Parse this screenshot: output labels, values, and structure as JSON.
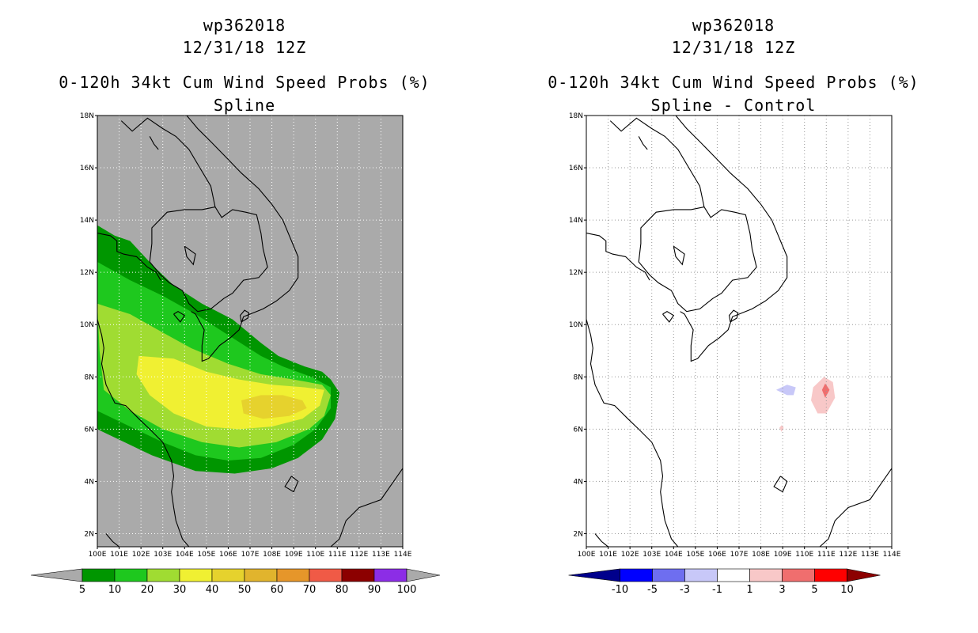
{
  "chart_data": [
    {
      "type": "heatmap",
      "title_lines": [
        "wp362018",
        "12/31/18 12Z",
        "0-120h 34kt Cum Wind Speed Probs (%)",
        "Spline"
      ],
      "x_ticks": [
        "100E",
        "101E",
        "102E",
        "103E",
        "104E",
        "105E",
        "106E",
        "107E",
        "108E",
        "109E",
        "110E",
        "111E",
        "112E",
        "113E",
        "114E"
      ],
      "y_ticks": [
        "2N",
        "4N",
        "6N",
        "8N",
        "10N",
        "12N",
        "14N",
        "16N",
        "18N"
      ],
      "xlim": [
        100,
        114
      ],
      "ylim": [
        1.5,
        18
      ],
      "background": "#aaaaaa",
      "grid": true,
      "colorbar": {
        "labels": [
          "5",
          "10",
          "20",
          "30",
          "40",
          "50",
          "60",
          "70",
          "80",
          "90",
          "100"
        ],
        "colors": [
          "#009600",
          "#1ec81e",
          "#a0dc32",
          "#f0f032",
          "#e6d22d",
          "#e1b42d",
          "#e6962a",
          "#f05a46",
          "#8c0000",
          "#8c2de6"
        ],
        "under_color": "#aaaaaa",
        "over_color": "#aaaaaa"
      },
      "contours": [
        {
          "level": 5,
          "color": "#009600",
          "points": [
            [
              100,
              13.8
            ],
            [
              100.8,
              13.4
            ],
            [
              101.5,
              13.2
            ],
            [
              102.5,
              12.3
            ],
            [
              103.5,
              11.5
            ],
            [
              104.8,
              10.8
            ],
            [
              106.2,
              10.2
            ],
            [
              107.5,
              9.3
            ],
            [
              108.3,
              8.8
            ],
            [
              109.5,
              8.4
            ],
            [
              110.3,
              8.2
            ],
            [
              110.7,
              7.9
            ],
            [
              111.1,
              7.4
            ],
            [
              110.9,
              6.4
            ],
            [
              110.3,
              5.6
            ],
            [
              109.2,
              4.9
            ],
            [
              108,
              4.5
            ],
            [
              106.3,
              4.3
            ],
            [
              104.5,
              4.4
            ],
            [
              102.5,
              5
            ],
            [
              101,
              5.6
            ],
            [
              100,
              6
            ]
          ]
        },
        {
          "level": 10,
          "color": "#1ec81e",
          "points": [
            [
              100,
              12.4
            ],
            [
              101.5,
              11.7
            ],
            [
              103,
              11.1
            ],
            [
              104.5,
              10.4
            ],
            [
              106,
              9.6
            ],
            [
              107.5,
              8.8
            ],
            [
              108.5,
              8.4
            ],
            [
              109.8,
              8
            ],
            [
              110.7,
              7.6
            ],
            [
              110.7,
              6.8
            ],
            [
              110,
              6
            ],
            [
              109,
              5.4
            ],
            [
              107.5,
              4.9
            ],
            [
              106,
              4.8
            ],
            [
              104.5,
              5
            ],
            [
              103,
              5.5
            ],
            [
              101.5,
              6.1
            ],
            [
              100,
              6.7
            ]
          ]
        },
        {
          "level": 20,
          "color": "#a0dc32",
          "points": [
            [
              100,
              10.8
            ],
            [
              101.5,
              10.4
            ],
            [
              103,
              9.7
            ],
            [
              104.3,
              9.1
            ],
            [
              106,
              8.5
            ],
            [
              107.5,
              8.1
            ],
            [
              109,
              7.9
            ],
            [
              110.3,
              7.7
            ],
            [
              110.7,
              7.3
            ],
            [
              110.4,
              6.5
            ],
            [
              109.7,
              6
            ],
            [
              108.2,
              5.5
            ],
            [
              106.5,
              5.3
            ],
            [
              104.8,
              5.5
            ],
            [
              103,
              6
            ],
            [
              101.5,
              6.7
            ],
            [
              100.3,
              7.5
            ],
            [
              100.1,
              9
            ]
          ]
        },
        {
          "level": 30,
          "color": "#f0f032",
          "points": [
            [
              101.9,
              8.8
            ],
            [
              103.5,
              8.7
            ],
            [
              105,
              8.2
            ],
            [
              106.5,
              7.9
            ],
            [
              108,
              7.7
            ],
            [
              109.5,
              7.6
            ],
            [
              110.4,
              7.5
            ],
            [
              110.2,
              6.9
            ],
            [
              109.4,
              6.4
            ],
            [
              108,
              6.1
            ],
            [
              106.5,
              6
            ],
            [
              105,
              6.1
            ],
            [
              103.5,
              6.6
            ],
            [
              102.4,
              7.3
            ],
            [
              101.8,
              8.1
            ]
          ]
        },
        {
          "level": 40,
          "color": "#e6d22d",
          "points": [
            [
              106.6,
              7.1
            ],
            [
              107.5,
              7.3
            ],
            [
              108.5,
              7.3
            ],
            [
              109.4,
              7.1
            ],
            [
              109.6,
              6.8
            ],
            [
              108.8,
              6.5
            ],
            [
              107.6,
              6.4
            ],
            [
              106.7,
              6.6
            ]
          ]
        }
      ]
    },
    {
      "type": "heatmap",
      "title_lines": [
        "wp362018",
        "12/31/18 12Z",
        "0-120h 34kt Cum Wind Speed Probs (%)",
        "Spline - Control"
      ],
      "x_ticks": [
        "100E",
        "101E",
        "102E",
        "103E",
        "104E",
        "105E",
        "106E",
        "107E",
        "108E",
        "109E",
        "110E",
        "111E",
        "112E",
        "113E",
        "114E"
      ],
      "y_ticks": [
        "2N",
        "4N",
        "6N",
        "8N",
        "10N",
        "12N",
        "14N",
        "16N",
        "18N"
      ],
      "xlim": [
        100,
        114
      ],
      "ylim": [
        1.5,
        18
      ],
      "background": "#ffffff",
      "grid": true,
      "colorbar": {
        "labels": [
          "-10",
          "-5",
          "-3",
          "-1",
          "1",
          "3",
          "5",
          "10"
        ],
        "colors": [
          "#0000ff",
          "#6e6ef0",
          "#c8c8f8",
          "#ffffff",
          "#f8c8c8",
          "#f06e6e",
          "#ff0000"
        ],
        "under_color": "#00008c",
        "over_color": "#8c0000"
      },
      "contours": [
        {
          "level": -1,
          "color": "#c8c8f8",
          "points": [
            [
              108.7,
              7.5
            ],
            [
              109.2,
              7.7
            ],
            [
              109.6,
              7.6
            ],
            [
              109.5,
              7.3
            ],
            [
              109.2,
              7.3
            ]
          ]
        },
        {
          "level": 1,
          "color": "#f8c8c8",
          "points": [
            [
              110.4,
              7.6
            ],
            [
              110.9,
              8
            ],
            [
              111.3,
              7.8
            ],
            [
              111.4,
              7.2
            ],
            [
              111,
              6.6
            ],
            [
              110.6,
              6.6
            ],
            [
              110.3,
              7.1
            ]
          ]
        },
        {
          "level": 3,
          "color": "#f06e6e",
          "points": [
            [
              110.8,
              7.5
            ],
            [
              110.95,
              7.75
            ],
            [
              111.15,
              7.5
            ],
            [
              110.95,
              7.2
            ]
          ]
        },
        {
          "level": 1,
          "color": "#f8c8c8",
          "points": [
            [
              108.85,
              6.05
            ],
            [
              108.95,
              6.15
            ],
            [
              109.05,
              6.05
            ],
            [
              108.95,
              5.9
            ]
          ]
        }
      ]
    }
  ],
  "coastlines": [
    [
      [
        101.1,
        17.8
      ],
      [
        101.6,
        17.4
      ],
      [
        102.3,
        17.9
      ],
      [
        103,
        17.5
      ],
      [
        103.6,
        17.2
      ],
      [
        104.2,
        16.7
      ],
      [
        104.7,
        16
      ],
      [
        105.2,
        15.3
      ],
      [
        105.4,
        14.5
      ],
      [
        105.7,
        14.1
      ],
      [
        106.2,
        14.4
      ],
      [
        106.8,
        14.3
      ],
      [
        107.3,
        14.2
      ],
      [
        107.5,
        13.5
      ],
      [
        107.6,
        12.9
      ],
      [
        107.8,
        12.2
      ],
      [
        107.4,
        11.8
      ],
      [
        106.7,
        11.7
      ],
      [
        106.2,
        11.2
      ],
      [
        105.8,
        11
      ],
      [
        105.2,
        10.6
      ],
      [
        104.6,
        10.5
      ],
      [
        104.2,
        10.8
      ],
      [
        103.9,
        11.3
      ],
      [
        103.3,
        11.6
      ],
      [
        102.9,
        11.9
      ],
      [
        102.4,
        12.4
      ],
      [
        102.5,
        13.1
      ],
      [
        102.5,
        13.7
      ],
      [
        103.2,
        14.3
      ],
      [
        104,
        14.4
      ],
      [
        104.8,
        14.4
      ],
      [
        105.4,
        14.5
      ]
    ],
    [
      [
        104.1,
        18
      ],
      [
        104.6,
        17.5
      ],
      [
        105.2,
        17
      ],
      [
        105.9,
        16.4
      ],
      [
        106.6,
        15.8
      ],
      [
        107.4,
        15.2
      ],
      [
        108,
        14.6
      ],
      [
        108.5,
        14
      ],
      [
        108.9,
        13.2
      ],
      [
        109.2,
        12.6
      ],
      [
        109.2,
        11.8
      ],
      [
        108.8,
        11.3
      ],
      [
        108.2,
        10.9
      ],
      [
        107.6,
        10.6
      ],
      [
        107,
        10.4
      ],
      [
        106.7,
        10.3
      ],
      [
        106.5,
        9.8
      ],
      [
        106.1,
        9.5
      ],
      [
        105.6,
        9.2
      ],
      [
        105.1,
        8.7
      ],
      [
        104.8,
        8.6
      ],
      [
        104.8,
        9.2
      ],
      [
        104.9,
        9.8
      ],
      [
        104.5,
        10.4
      ],
      [
        104.3,
        10.5
      ]
    ],
    [
      [
        106.6,
        10.1
      ],
      [
        106.9,
        10.25
      ],
      [
        106.95,
        10.45
      ],
      [
        106.75,
        10.55
      ],
      [
        106.55,
        10.35
      ],
      [
        106.6,
        10.1
      ]
    ],
    [
      [
        100,
        13.5
      ],
      [
        100.6,
        13.4
      ],
      [
        100.9,
        13.2
      ],
      [
        100.9,
        12.8
      ],
      [
        101.2,
        12.7
      ],
      [
        101.8,
        12.6
      ],
      [
        102.3,
        12.2
      ],
      [
        102.7,
        12.0
      ],
      [
        102.9,
        11.7
      ]
    ],
    [
      [
        100,
        10.2
      ],
      [
        100.2,
        9.6
      ],
      [
        100.3,
        9.1
      ],
      [
        100.2,
        8.5
      ],
      [
        100.4,
        7.7
      ],
      [
        100.8,
        7
      ],
      [
        101.3,
        6.9
      ],
      [
        101.9,
        6.4
      ],
      [
        102.4,
        6
      ],
      [
        103,
        5.5
      ],
      [
        103.4,
        4.8
      ],
      [
        103.5,
        4.2
      ],
      [
        103.4,
        3.6
      ],
      [
        103.5,
        3
      ],
      [
        103.6,
        2.5
      ],
      [
        103.9,
        1.8
      ],
      [
        104.2,
        1.5
      ]
    ],
    [
      [
        102.4,
        17.2
      ],
      [
        102.6,
        16.9
      ],
      [
        102.8,
        16.7
      ]
    ],
    [
      [
        104.0,
        13.0
      ],
      [
        104.5,
        12.7
      ],
      [
        104.4,
        12.3
      ],
      [
        104.1,
        12.6
      ],
      [
        104.0,
        13.0
      ]
    ],
    [
      [
        108.9,
        4.2
      ],
      [
        109.2,
        4.0
      ],
      [
        109.0,
        3.6
      ],
      [
        108.6,
        3.8
      ],
      [
        108.9,
        4.2
      ]
    ],
    [
      [
        110.7,
        1.5
      ],
      [
        111.1,
        1.8
      ],
      [
        111.4,
        2.5
      ],
      [
        112,
        3
      ],
      [
        113,
        3.3
      ],
      [
        113.5,
        3.9
      ],
      [
        114,
        4.5
      ]
    ],
    [
      [
        100.4,
        2.0
      ],
      [
        100.7,
        1.7
      ],
      [
        101,
        1.5
      ]
    ],
    [
      [
        103.5,
        10.4
      ],
      [
        103.8,
        10.1
      ],
      [
        104.0,
        10.35
      ],
      [
        103.7,
        10.5
      ],
      [
        103.5,
        10.4
      ]
    ]
  ]
}
